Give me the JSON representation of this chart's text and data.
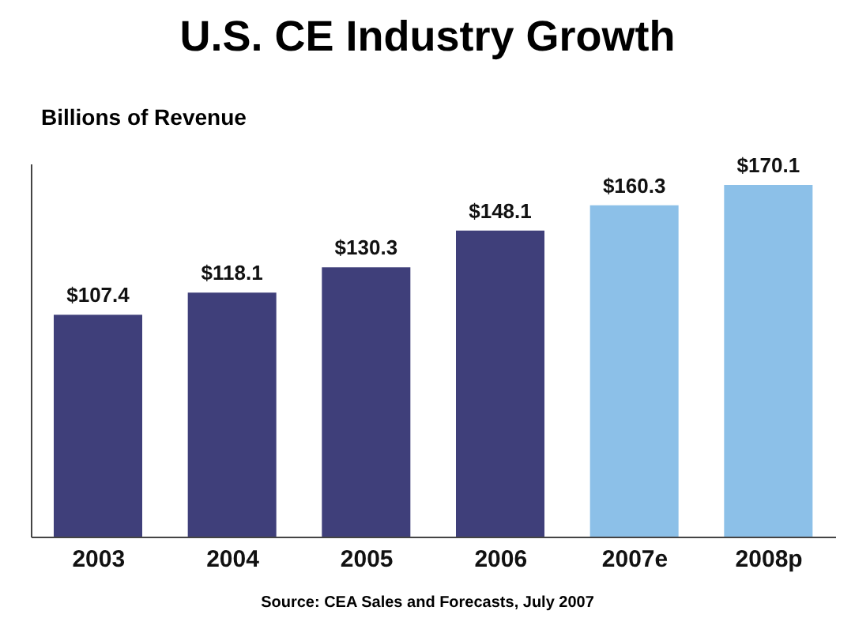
{
  "chart_data": {
    "type": "bar",
    "title": "U.S. CE Industry Growth",
    "ylabel": "Billions of Revenue",
    "categories": [
      "2003",
      "2004",
      "2005",
      "2006",
      "2007e",
      "2008p"
    ],
    "values": [
      107.4,
      118.1,
      130.3,
      148.1,
      160.3,
      170.1
    ],
    "value_labels": [
      "$107.4",
      "$118.1",
      "$130.3",
      "$148.1",
      "$160.3",
      "$170.1"
    ],
    "colors": [
      "#3f3f7a",
      "#3f3f7a",
      "#3f3f7a",
      "#3f3f7a",
      "#8cc0e8",
      "#8cc0e8"
    ],
    "ylim": [
      0,
      180
    ],
    "tick_labels": "x",
    "annotations": [
      "Source: CEA Sales and Forecasts, July 2007"
    ]
  }
}
